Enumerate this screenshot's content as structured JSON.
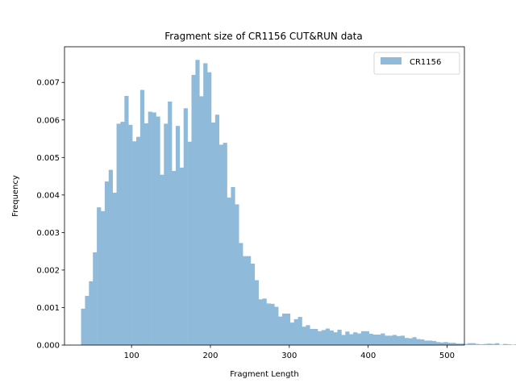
{
  "chart_data": {
    "type": "bar",
    "title": "Fragment size of CR1156 CUT&RUN data",
    "xlabel": "Fragment Length",
    "ylabel": "Frequency",
    "xlim": [
      15,
      522
    ],
    "ylim": [
      0,
      0.00795
    ],
    "xticks": [
      100,
      200,
      300,
      400,
      500
    ],
    "yticks": [
      0.0,
      0.001,
      0.002,
      0.003,
      0.004,
      0.005,
      0.006,
      0.007
    ],
    "ytick_labels": [
      "0.000",
      "0.001",
      "0.002",
      "0.003",
      "0.004",
      "0.005",
      "0.006",
      "0.007"
    ],
    "legend_position": "top-right",
    "grid": false,
    "series": [
      {
        "name": "CR1156",
        "color": "#8fbad9",
        "bin_start": 36,
        "bin_width": 5,
        "values": [
          0.00097,
          0.00131,
          0.0017,
          0.00247,
          0.00367,
          0.00357,
          0.00436,
          0.00467,
          0.00406,
          0.0059,
          0.00595,
          0.00664,
          0.00587,
          0.00543,
          0.00555,
          0.0068,
          0.00591,
          0.00622,
          0.0062,
          0.00609,
          0.00454,
          0.0059,
          0.00649,
          0.00464,
          0.00584,
          0.00473,
          0.00631,
          0.00542,
          0.0072,
          0.0076,
          0.00663,
          0.00751,
          0.00727,
          0.00593,
          0.00614,
          0.00534,
          0.00539,
          0.00393,
          0.00421,
          0.00375,
          0.00272,
          0.00237,
          0.00237,
          0.00217,
          0.00173,
          0.00122,
          0.00124,
          0.00111,
          0.0011,
          0.00102,
          0.00076,
          0.00084,
          0.00084,
          0.0006,
          0.00069,
          0.00075,
          0.00049,
          0.00053,
          0.00043,
          0.00043,
          0.00037,
          0.0004,
          0.00044,
          0.00039,
          0.00034,
          0.00041,
          0.00027,
          0.00036,
          0.00029,
          0.00034,
          0.00031,
          0.00037,
          0.00037,
          0.0003,
          0.00028,
          0.00028,
          0.00031,
          0.00025,
          0.00025,
          0.00027,
          0.00024,
          0.00025,
          0.00019,
          0.00018,
          0.00021,
          0.00016,
          0.00015,
          0.00012,
          0.00012,
          0.00011,
          8e-05,
          7e-05,
          8e-05,
          6e-05,
          6e-05,
          4e-05,
          4e-05,
          3e-05,
          5e-05,
          5e-05,
          3e-05,
          2e-05,
          3e-05,
          4e-05,
          3e-05,
          5e-05,
          1e-05,
          3e-05,
          2e-05,
          1e-05,
          2e-05,
          1e-05,
          1e-05,
          2e-05,
          1e-05,
          1e-05,
          1e-05,
          1e-05,
          1e-05,
          1e-05
        ]
      }
    ]
  }
}
